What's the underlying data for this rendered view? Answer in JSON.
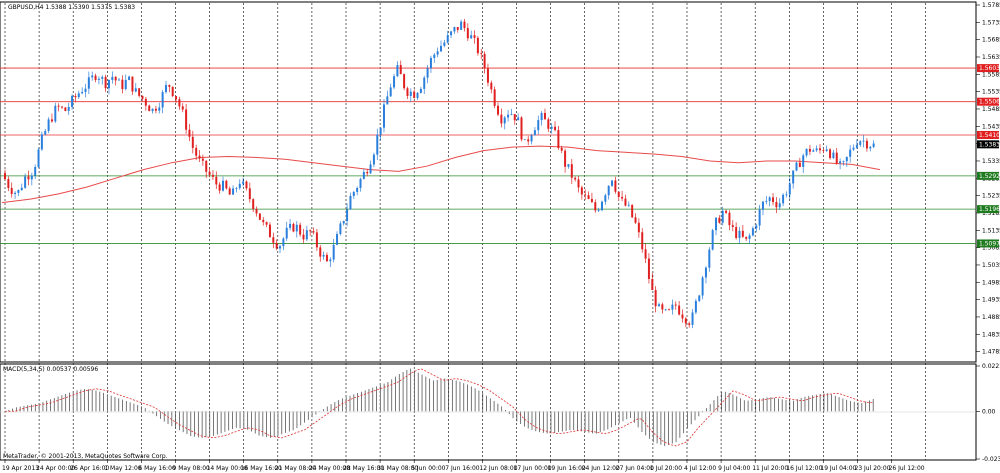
{
  "header": {
    "title": "GBPUSD,H4",
    "ohlc": "1.5388 1.5390 1.5375 1.5383",
    "macd_label": "MACD(5,34,5) 0.00537 0.00596",
    "copyright": "MetaTrader, © 2001-2013, MetaQuotes Software Corp."
  },
  "chart_data": {
    "type": "candlestick",
    "symbol": "GBPUSD",
    "timeframe": "H4",
    "ylim": [
      1.4755,
      1.5785
    ],
    "price_axis_ticks": [
      "1.5785",
      "1.5735",
      "1.5685",
      "1.5635",
      "1.5585",
      "1.5535",
      "1.5485",
      "1.5435",
      "1.5385",
      "1.5335",
      "1.5285",
      "1.5235",
      "1.5185",
      "1.5135",
      "1.5085",
      "1.5035",
      "1.4985",
      "1.4935",
      "1.4885",
      "1.4835",
      "1.4785"
    ],
    "time_axis_labels": [
      "19 Apr 2013",
      "24 Apr 00:00",
      "26 Apr 16:00",
      "1 May 12:00",
      "6 May 16:00",
      "9 May 08:00",
      "14 May 00:00",
      "16 May 16:00",
      "21 May 08:00",
      "24 May 00:00",
      "28 May 16:00",
      "31 May 08:00",
      "5 Jun 00:00",
      "7 Jun 16:00",
      "12 Jun 08:00",
      "17 Jun 00:00",
      "19 Jun 16:00",
      "24 Jun 12:00",
      "27 Jun 04:00",
      "1 Jul 20:00",
      "4 Jul 12:00",
      "9 Jul 04:00",
      "11 Jul 20:00",
      "16 Jul 12:00",
      "19 Jul 04:00",
      "23 Jul 20:00",
      "26 Jul 12:00"
    ],
    "current_price": "1.5383",
    "resistance_levels": [
      {
        "label": "1.5603",
        "value": 1.5603
      },
      {
        "label": "1.5506",
        "value": 1.5506
      },
      {
        "label": "1.5410",
        "value": 1.541
      }
    ],
    "support_levels": [
      {
        "label": "1.5292",
        "value": 1.5292
      },
      {
        "label": "1.5196",
        "value": 1.5196
      },
      {
        "label": "1.5097",
        "value": 1.5097
      }
    ],
    "price_path": [
      1.53,
      1.526,
      1.524,
      1.529,
      1.531,
      1.539,
      1.545,
      1.549,
      1.548,
      1.551,
      1.554,
      1.556,
      1.559,
      1.556,
      1.558,
      1.555,
      1.557,
      1.553,
      1.551,
      1.548,
      1.551,
      1.556,
      1.552,
      1.546,
      1.538,
      1.533,
      1.53,
      1.527,
      1.526,
      1.523,
      1.528,
      1.524,
      1.52,
      1.515,
      1.512,
      1.509,
      1.513,
      1.515,
      1.512,
      1.513,
      1.508,
      1.504,
      1.509,
      1.516,
      1.523,
      1.527,
      1.531,
      1.537,
      1.546,
      1.555,
      1.56,
      1.554,
      1.553,
      1.556,
      1.562,
      1.566,
      1.568,
      1.571,
      1.573,
      1.57,
      1.566,
      1.56,
      1.552,
      1.546,
      1.548,
      1.546,
      1.538,
      1.543,
      1.546,
      1.544,
      1.54,
      1.533,
      1.529,
      1.524,
      1.522,
      1.519,
      1.524,
      1.529,
      1.522,
      1.52,
      1.515,
      1.507,
      1.496,
      1.49,
      1.489,
      1.492,
      1.489,
      1.487,
      1.496,
      1.506,
      1.515,
      1.519,
      1.514,
      1.512,
      1.51,
      1.515,
      1.521,
      1.523,
      1.521,
      1.525,
      1.53,
      1.535,
      1.537,
      1.536,
      1.538,
      1.534,
      1.531,
      1.536,
      1.54,
      1.539,
      1.538
    ],
    "moving_average_path": [
      1.5215,
      1.5225,
      1.524,
      1.526,
      1.5285,
      1.531,
      1.533,
      1.5345,
      1.5348,
      1.5345,
      1.534,
      1.533,
      1.532,
      1.531,
      1.5305,
      1.532,
      1.5345,
      1.5365,
      1.5375,
      1.5378,
      1.5375,
      1.5365,
      1.536,
      1.5355,
      1.5348,
      1.5335,
      1.533,
      1.5335,
      1.5335,
      1.533,
      1.5325,
      1.531
    ],
    "macd": {
      "ylim": [
        -0.02327,
        0.02211
      ],
      "ticks": [
        "0.02211",
        "0.00",
        "-0.02327"
      ],
      "histogram": [
        0.0,
        0.002,
        0.003,
        0.004,
        0.006,
        0.008,
        0.01,
        0.011,
        0.01,
        0.008,
        0.006,
        0.004,
        0.002,
        -0.002,
        -0.006,
        -0.009,
        -0.012,
        -0.013,
        -0.012,
        -0.01,
        -0.008,
        -0.009,
        -0.012,
        -0.013,
        -0.011,
        -0.009,
        -0.005,
        -0.001,
        0.003,
        0.006,
        0.008,
        0.01,
        0.012,
        0.014,
        0.018,
        0.021,
        0.018,
        0.015,
        0.016,
        0.015,
        0.013,
        0.01,
        0.006,
        0.002,
        -0.004,
        -0.008,
        -0.01,
        -0.011,
        -0.01,
        -0.009,
        -0.01,
        -0.011,
        -0.009,
        -0.006,
        -0.003,
        -0.01,
        -0.015,
        -0.017,
        -0.015,
        -0.008,
        -0.002,
        0.004,
        0.01,
        0.008,
        0.005,
        0.006,
        0.007,
        0.006,
        0.005,
        0.007,
        0.008,
        0.009,
        0.007,
        0.005,
        0.004,
        0.006
      ]
    }
  }
}
